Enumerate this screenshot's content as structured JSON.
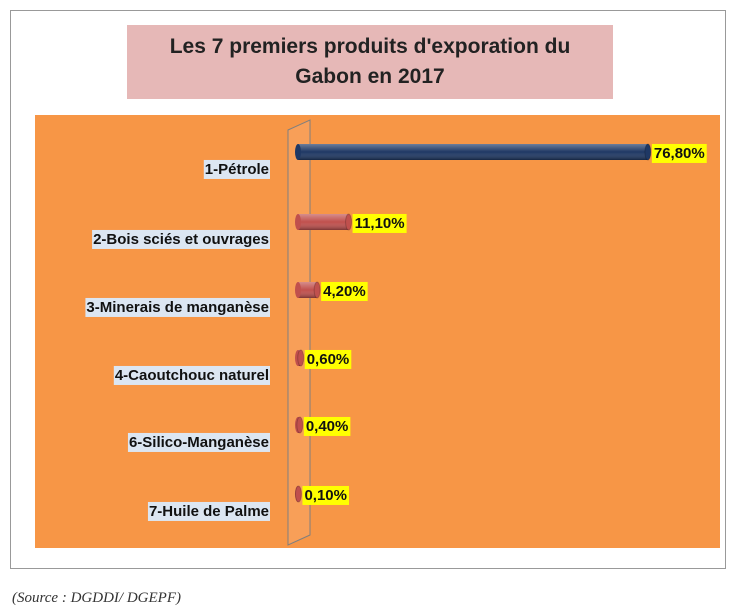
{
  "chart_data": {
    "type": "bar",
    "orientation": "horizontal",
    "title": "Les 7 premiers produits d'exporation du Gabon en 2017",
    "categories": [
      "1-Pétrole",
      "2-Bois sciés et ouvrages",
      "3-Minerais de manganèse",
      "4-Caoutchouc naturel",
      "6-Silico-Manganèse",
      "7-Huile de Palme"
    ],
    "values": [
      76.8,
      11.1,
      4.2,
      0.6,
      0.4,
      0.1
    ],
    "value_labels": [
      "76,80%",
      "11,10%",
      "4,20%",
      "0,60%",
      "0,40%",
      "0,10%"
    ],
    "colors": [
      "#1f3864",
      "#c0504d",
      "#c0504d",
      "#c0504d",
      "#c0504d",
      "#c0504d"
    ],
    "xlim": [
      0,
      90
    ]
  },
  "source": "(Source : DGDDI/ DGEPF)"
}
